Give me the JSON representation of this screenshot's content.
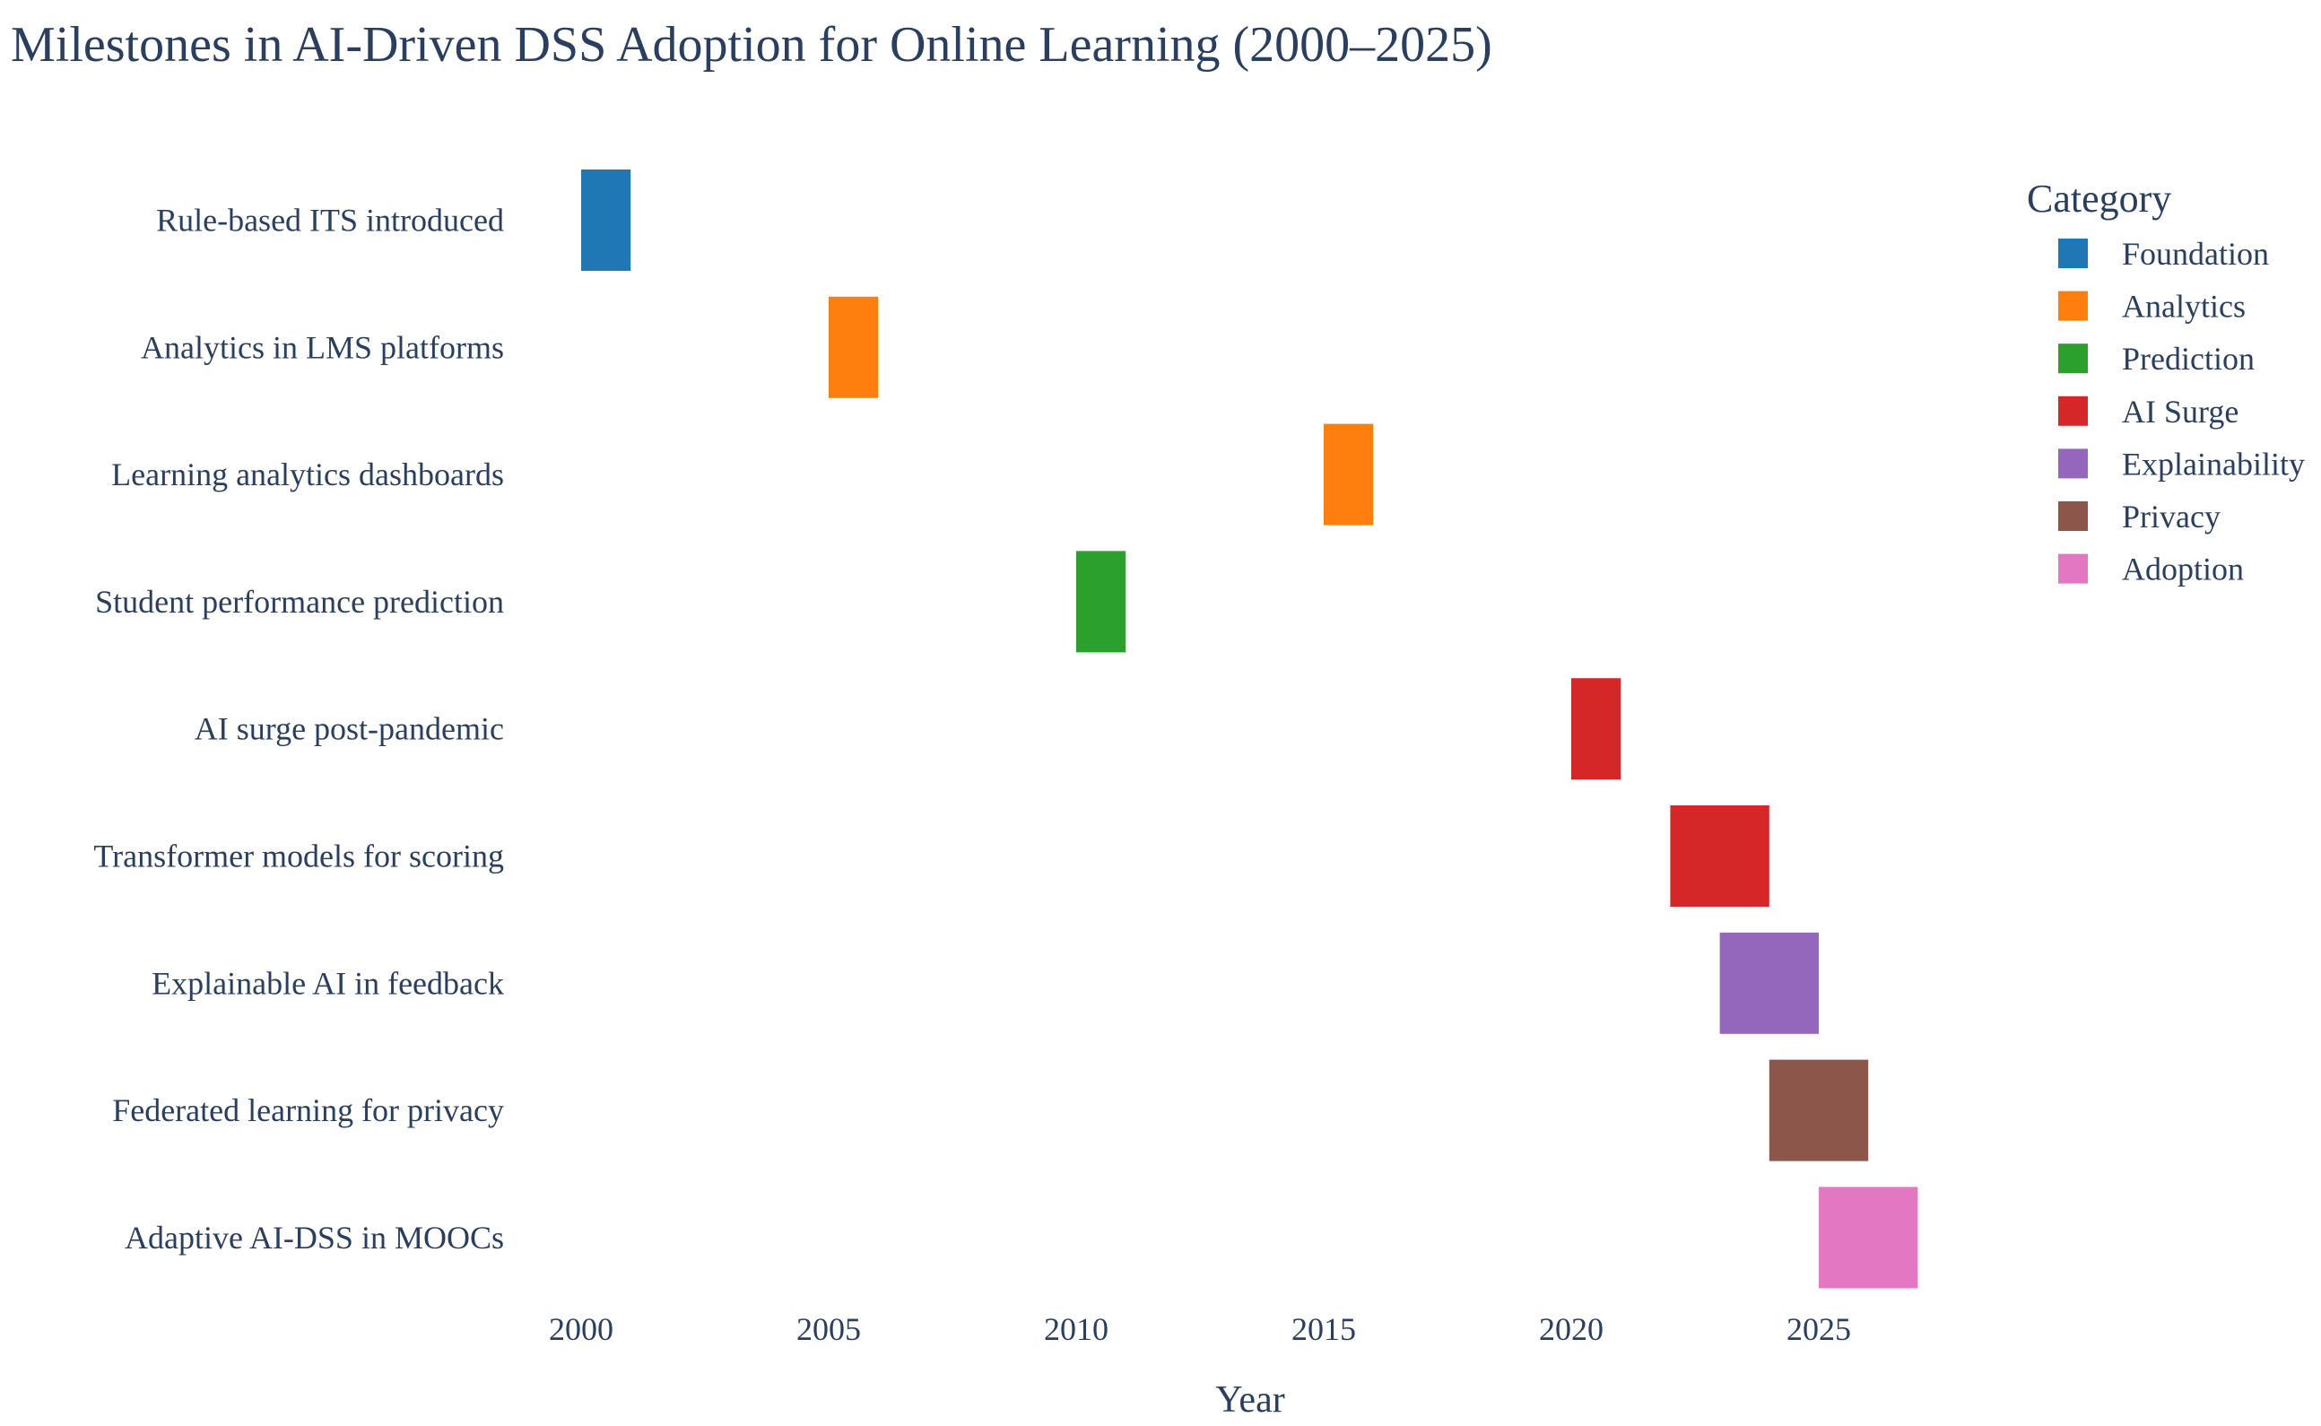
{
  "chart_data": {
    "type": "timeline",
    "title": "Milestones in AI-Driven DSS Adoption for Online Learning (2000–2025)",
    "xlabel": "Year",
    "ylabel": "",
    "xlim": [
      1997.5,
      2030
    ],
    "x_ticks": [
      "2000",
      "2005",
      "2010",
      "2015",
      "2020",
      "2025"
    ],
    "legend_title": "Category",
    "legend_position": "top-right",
    "categories": [
      {
        "name": "Foundation",
        "color": "#1f77b4"
      },
      {
        "name": "Analytics",
        "color": "#ff7f0e"
      },
      {
        "name": "Prediction",
        "color": "#2ca02c"
      },
      {
        "name": "AI Surge",
        "color": "#d62728"
      },
      {
        "name": "Explainability",
        "color": "#9467bd"
      },
      {
        "name": "Privacy",
        "color": "#8c564b"
      },
      {
        "name": "Adoption",
        "color": "#e377c2"
      }
    ],
    "milestones": [
      {
        "label": "Rule-based ITS introduced",
        "start": 2000,
        "end": 2001,
        "category": "Foundation"
      },
      {
        "label": "Analytics in LMS platforms",
        "start": 2005,
        "end": 2006,
        "category": "Analytics"
      },
      {
        "label": "Learning analytics dashboards",
        "start": 2015,
        "end": 2016,
        "category": "Analytics"
      },
      {
        "label": "Student performance prediction",
        "start": 2010,
        "end": 2011,
        "category": "Prediction"
      },
      {
        "label": "AI surge post-pandemic",
        "start": 2020,
        "end": 2021,
        "category": "AI Surge"
      },
      {
        "label": "Transformer models for scoring",
        "start": 2022,
        "end": 2024,
        "category": "AI Surge"
      },
      {
        "label": "Explainable AI in feedback",
        "start": 2023,
        "end": 2025,
        "category": "Explainability"
      },
      {
        "label": "Federated learning for privacy",
        "start": 2024,
        "end": 2026,
        "category": "Privacy"
      },
      {
        "label": "Adaptive AI-DSS in MOOCs",
        "start": 2025,
        "end": 2027,
        "category": "Adoption"
      }
    ]
  }
}
